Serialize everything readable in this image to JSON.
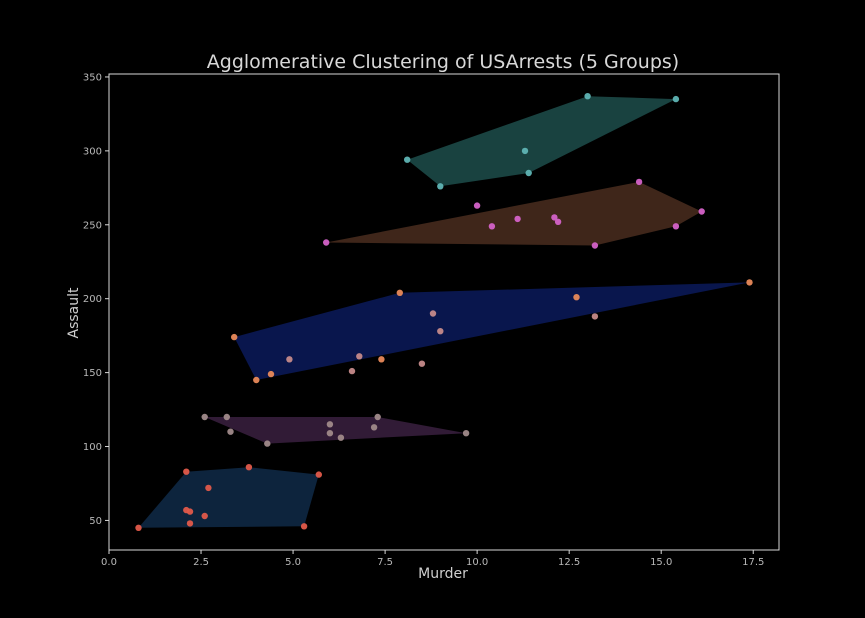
{
  "chart_data": {
    "type": "scatter",
    "title": "Agglomerative Clustering of USArrests (5 Groups)",
    "xlabel": "Murder",
    "ylabel": "Assault",
    "xlim": [
      0,
      18.2
    ],
    "ylim": [
      30,
      352
    ],
    "x_ticks": [
      0.0,
      2.5,
      5.0,
      7.5,
      10.0,
      12.5,
      15.0,
      17.5
    ],
    "x_tick_labels": [
      "0.0",
      "2.5",
      "5.0",
      "7.5",
      "10.0",
      "12.5",
      "15.0",
      "17.5"
    ],
    "y_ticks": [
      50,
      100,
      150,
      200,
      250,
      300,
      350
    ],
    "y_tick_labels": [
      "50",
      "100",
      "150",
      "200",
      "250",
      "300",
      "350"
    ],
    "grid": false,
    "legend": "none",
    "clusters": [
      {
        "color": "#5fb4b4",
        "fill": "#1d4d4b",
        "hull": [
          [
            8.1,
            294
          ],
          [
            13.0,
            337
          ],
          [
            15.4,
            335
          ],
          [
            11.4,
            285
          ],
          [
            9.0,
            276
          ]
        ],
        "points": [
          [
            8.1,
            294
          ],
          [
            13.0,
            337
          ],
          [
            15.4,
            335
          ],
          [
            11.3,
            300
          ],
          [
            11.4,
            285
          ],
          [
            9.0,
            276
          ]
        ]
      },
      {
        "color": "#d462c8",
        "fill": "#4a2d1e",
        "hull": [
          [
            5.9,
            238
          ],
          [
            14.4,
            279
          ],
          [
            16.1,
            259
          ],
          [
            15.4,
            249
          ],
          [
            13.2,
            236
          ]
        ],
        "points": [
          [
            5.9,
            238
          ],
          [
            10.0,
            263
          ],
          [
            10.4,
            249
          ],
          [
            11.1,
            254
          ],
          [
            12.1,
            255
          ],
          [
            12.2,
            252
          ],
          [
            14.4,
            279
          ],
          [
            16.1,
            259
          ],
          [
            15.4,
            249
          ],
          [
            13.2,
            236
          ]
        ]
      },
      {
        "color": "#e8895a",
        "color_alt": "#c58a8a",
        "fill": "#0a1a5a",
        "hull": [
          [
            3.4,
            174
          ],
          [
            7.9,
            204
          ],
          [
            17.4,
            211
          ],
          [
            4.0,
            145
          ]
        ],
        "points": [
          [
            3.4,
            174
          ],
          [
            7.9,
            204
          ],
          [
            17.4,
            211
          ],
          [
            4.0,
            145
          ],
          [
            4.4,
            149
          ],
          [
            4.9,
            159
          ],
          [
            6.6,
            151
          ],
          [
            6.8,
            161
          ],
          [
            7.4,
            159
          ],
          [
            8.5,
            156
          ],
          [
            8.8,
            190
          ],
          [
            9.0,
            178
          ],
          [
            12.7,
            201
          ],
          [
            13.2,
            188
          ]
        ]
      },
      {
        "color": "#a08a8a",
        "fill": "#3a2040",
        "hull": [
          [
            2.6,
            120
          ],
          [
            7.3,
            120
          ],
          [
            9.7,
            109
          ],
          [
            4.3,
            102
          ]
        ],
        "points": [
          [
            2.6,
            120
          ],
          [
            3.2,
            120
          ],
          [
            3.3,
            110
          ],
          [
            4.3,
            102
          ],
          [
            6.0,
            115
          ],
          [
            6.0,
            109
          ],
          [
            6.3,
            106
          ],
          [
            7.2,
            113
          ],
          [
            7.3,
            120
          ],
          [
            9.7,
            109
          ]
        ]
      },
      {
        "color": "#e05a4a",
        "fill": "#0f2a48",
        "hull": [
          [
            0.8,
            45
          ],
          [
            2.1,
            83
          ],
          [
            3.8,
            86
          ],
          [
            5.7,
            81
          ],
          [
            5.3,
            46
          ]
        ],
        "points": [
          [
            0.8,
            45
          ],
          [
            2.1,
            83
          ],
          [
            2.1,
            57
          ],
          [
            2.2,
            56
          ],
          [
            2.2,
            48
          ],
          [
            2.6,
            53
          ],
          [
            2.7,
            72
          ],
          [
            3.8,
            86
          ],
          [
            5.7,
            81
          ],
          [
            5.3,
            46
          ]
        ]
      }
    ]
  }
}
